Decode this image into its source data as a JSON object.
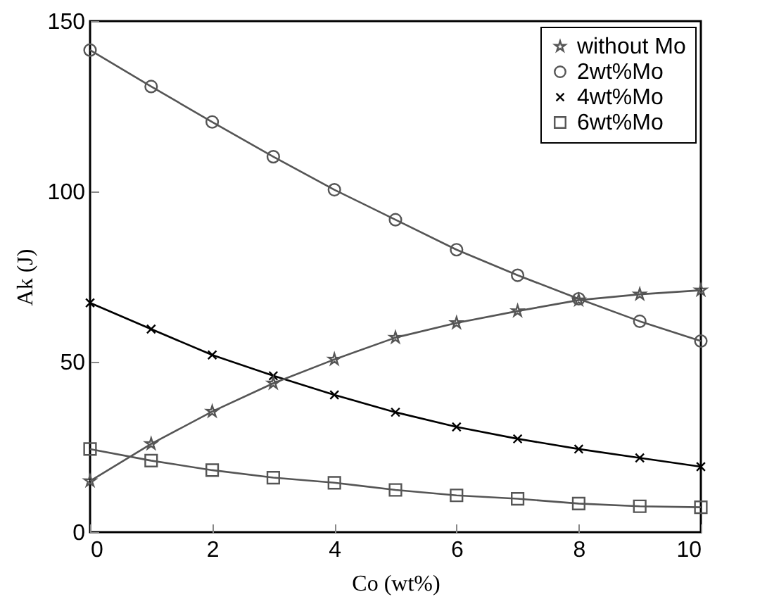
{
  "chart_data": {
    "type": "line",
    "xlabel": "Co (wt%)",
    "ylabel": "Ak (J)",
    "x": [
      0,
      1,
      2,
      3,
      4,
      5,
      6,
      7,
      8,
      9,
      10
    ],
    "series": [
      {
        "name": "without Mo",
        "color": "#555555",
        "marker": "star",
        "values": [
          15,
          25.9,
          35.4,
          43.7,
          50.7,
          57.1,
          61.4,
          64.9,
          68.1,
          69.8,
          71.0
        ]
      },
      {
        "name": "2wt%Mo",
        "color": "#555555",
        "marker": "circle",
        "values": [
          141.5,
          130.8,
          120.4,
          110.2,
          100.5,
          91.7,
          82.9,
          75.4,
          68.5,
          61.9,
          56.1
        ]
      },
      {
        "name": "4wt%Mo",
        "color": "#000000",
        "marker": "cross",
        "values": [
          67.3,
          59.6,
          52.0,
          45.9,
          40.3,
          35.2,
          30.9,
          27.4,
          24.4,
          21.8,
          19.2
        ]
      },
      {
        "name": "6wt%Mo",
        "color": "#555555",
        "marker": "square",
        "values": [
          24.4,
          21.0,
          18.2,
          16.0,
          14.5,
          12.4,
          10.8,
          9.8,
          8.4,
          7.6,
          7.3
        ]
      }
    ],
    "xlim": [
      0,
      10
    ],
    "xticks": [
      0,
      2,
      4,
      6,
      8,
      10
    ],
    "ylim": [
      0,
      150
    ],
    "yticks": [
      0,
      50,
      100,
      150
    ],
    "legend": "top right",
    "grid": false
  }
}
